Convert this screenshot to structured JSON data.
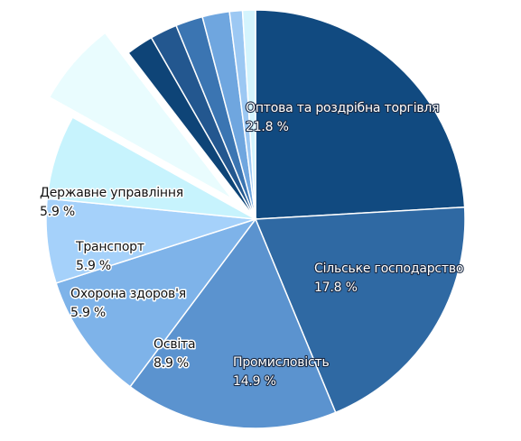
{
  "chart_data": {
    "type": "pie",
    "title": "",
    "unit": "%",
    "slices": [
      {
        "label": "Оптова та роздрібна торгівля",
        "value": 21.8,
        "value_label": "21.8 %",
        "color": "#114a80",
        "label_style": "light"
      },
      {
        "label": "Сільське господарство",
        "value": 17.8,
        "value_label": "17.8 %",
        "color": "#2f69a3",
        "label_style": "light"
      },
      {
        "label": "Промисловість",
        "value": 14.9,
        "value_label": "14.9 %",
        "color": "#5b93cf",
        "label_style": "light"
      },
      {
        "label": "Освіта",
        "value": 8.9,
        "value_label": "8.9 %",
        "color": "#7eb3e9",
        "label_style": "dark"
      },
      {
        "label": "Охорона здоров'я",
        "value": 5.9,
        "value_label": "5.9 %",
        "color": "#a5d1fa",
        "label_style": "dark"
      },
      {
        "label": "Транспорт",
        "value": 5.9,
        "value_label": "5.9 %",
        "color": "#c7f3fd",
        "label_style": "dark"
      },
      {
        "label": "Державне управління",
        "value": 5.9,
        "value_label": "5.9 %",
        "color": "#e9fcfe",
        "label_style": "dark"
      },
      {
        "label": "",
        "value": 1.9,
        "color": "#0e4477"
      },
      {
        "label": "",
        "value": 1.9,
        "color": "#23578f"
      },
      {
        "label": "",
        "value": 1.9,
        "color": "#3b75b2"
      },
      {
        "label": "",
        "value": 1.9,
        "color": "#6fa6df"
      },
      {
        "label": "",
        "value": 0.9,
        "color": "#9cc8f3"
      },
      {
        "label": "",
        "value": 0.9,
        "color": "#d4f4fd"
      }
    ]
  }
}
